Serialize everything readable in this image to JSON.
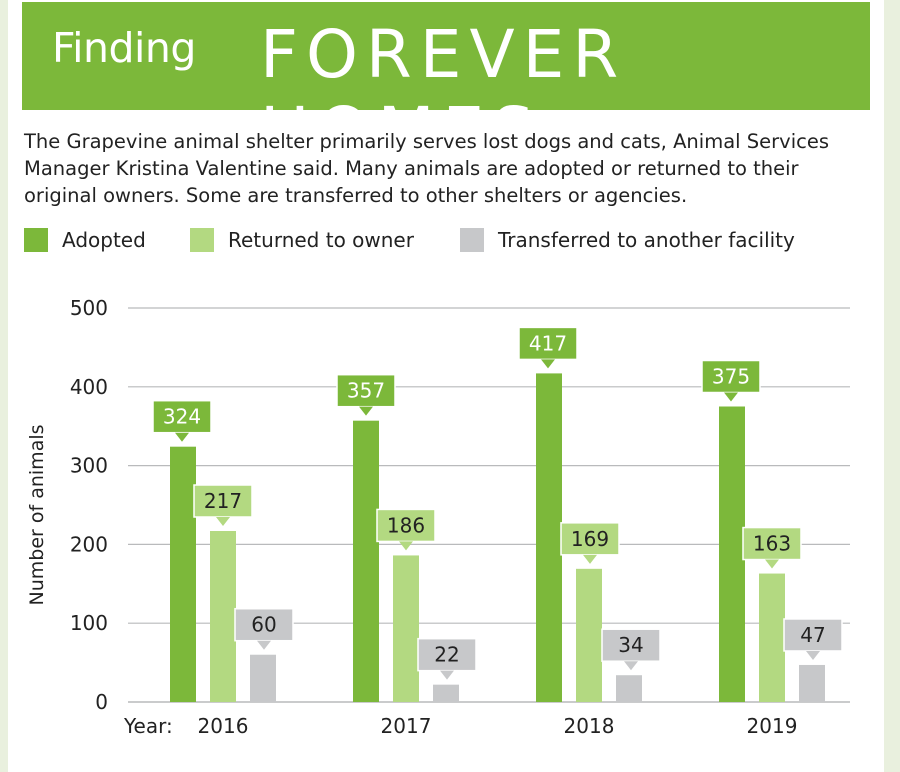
{
  "header": {
    "title_small": "Finding",
    "title_big": "FOREVER HOMES"
  },
  "intro_text": "The Grapevine animal shelter primarily serves lost dogs and cats, Animal Services Manager Kristina Valentine said. Many animals are adopted or returned to their original owners. Some are transferred to other shelters or agencies.",
  "colors": {
    "banner": "#7cb83a",
    "adopted": "#7cb83a",
    "returned": "#b3d981",
    "transferred": "#c7c8ca"
  },
  "chart_data": {
    "type": "bar",
    "categories": [
      "2016",
      "2017",
      "2018",
      "2019"
    ],
    "x_prefix": "Year:",
    "ylabel": "Number of animals",
    "ylim": [
      0,
      500
    ],
    "yticks": [
      0,
      100,
      200,
      300,
      400,
      500
    ],
    "grid": true,
    "legend_position": "top",
    "series": [
      {
        "name": "Adopted",
        "values": [
          324,
          357,
          417,
          375
        ],
        "color": "#7cb83a"
      },
      {
        "name": "Returned to owner",
        "values": [
          217,
          186,
          169,
          163
        ],
        "color": "#b3d981"
      },
      {
        "name": "Transferred to another facility",
        "values": [
          60,
          22,
          34,
          47
        ],
        "color": "#c7c8ca"
      }
    ]
  }
}
